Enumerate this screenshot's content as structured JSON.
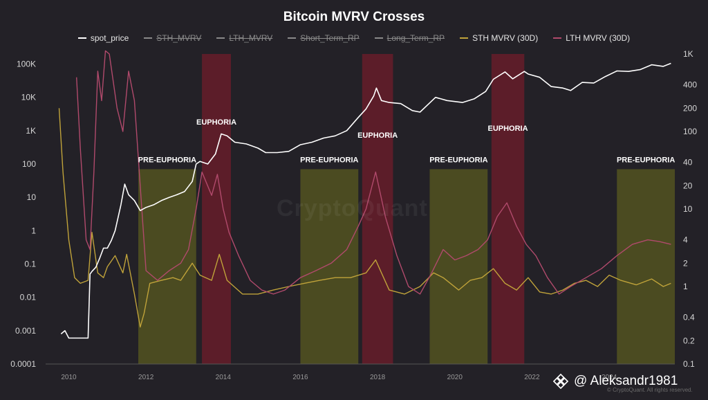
{
  "chart_data": {
    "type": "line",
    "title": "Bitcoin MVRV Crosses",
    "legend": {
      "placement": "top-center",
      "entries": [
        {
          "name": "spot_price",
          "color": "#ffffff",
          "visible": true
        },
        {
          "name": "STH_MVRV",
          "color": "#8a8a8a",
          "visible": false
        },
        {
          "name": "LTH_MVRV",
          "color": "#8a8a8a",
          "visible": false
        },
        {
          "name": "Short_Term_RP",
          "color": "#8a8a8a",
          "visible": false
        },
        {
          "name": "Long_Term_RP",
          "color": "#8a8a8a",
          "visible": false
        },
        {
          "name": "STH MVRV (30D)",
          "color": "#c0a33a",
          "visible": true
        },
        {
          "name": "LTH MVRV (30D)",
          "color": "#b14a6c",
          "visible": true
        }
      ]
    },
    "x_axis": {
      "range": [
        2009.4,
        2025.7
      ],
      "ticks": [
        "2010",
        "2012",
        "2014",
        "2016",
        "2018",
        "2020",
        "2022",
        "2024"
      ]
    },
    "y_left": {
      "scale": "log",
      "range": [
        0.0001,
        200000
      ],
      "ticks": [
        "100K",
        "10K",
        "1K",
        "100",
        "10",
        "1",
        "0.1",
        "0.01",
        "0.001",
        "0.0001"
      ]
    },
    "y_right": {
      "scale": "log",
      "range": [
        0.1,
        1000
      ],
      "ticks": [
        "1K",
        "400",
        "200",
        "100",
        "40",
        "20",
        "10",
        "4",
        "2",
        "1",
        "0.4",
        "0.2",
        "0.1"
      ]
    },
    "grid": false,
    "zones": [
      {
        "label": "PRE-EUPHORIA",
        "type": "pre",
        "from": 2011.8,
        "to": 2013.3
      },
      {
        "label": "EUPHORIA",
        "type": "euphoria",
        "from": 2013.45,
        "to": 2014.2
      },
      {
        "label": "PRE-EUPHORIA",
        "type": "pre",
        "from": 2016.0,
        "to": 2017.5
      },
      {
        "label": "EUPHORIA",
        "type": "euphoria",
        "from": 2017.6,
        "to": 2018.4
      },
      {
        "label": "PRE-EUPHORIA",
        "type": "pre",
        "from": 2019.35,
        "to": 2020.85
      },
      {
        "label": "EUPHORIA",
        "type": "euphoria",
        "from": 2020.95,
        "to": 2021.8
      },
      {
        "label": "PRE-EUPHORIA",
        "type": "pre",
        "from": 2024.2,
        "to": 2025.7
      }
    ],
    "series": [
      {
        "name": "spot_price",
        "axis": "left",
        "color": "#ffffff",
        "x": [
          2009.8,
          2009.9,
          2010.0,
          2010.2,
          2010.5,
          2010.55,
          2010.6,
          2010.7,
          2010.8,
          2010.9,
          2011.0,
          2011.1,
          2011.2,
          2011.35,
          2011.45,
          2011.55,
          2011.7,
          2011.85,
          2012.0,
          2012.2,
          2012.4,
          2012.6,
          2012.8,
          2013.0,
          2013.2,
          2013.3,
          2013.4,
          2013.6,
          2013.8,
          2013.95,
          2014.1,
          2014.3,
          2014.6,
          2014.9,
          2015.1,
          2015.4,
          2015.7,
          2016.0,
          2016.3,
          2016.6,
          2016.9,
          2017.2,
          2017.5,
          2017.7,
          2017.9,
          2017.97,
          2018.1,
          2018.3,
          2018.6,
          2018.9,
          2019.1,
          2019.5,
          2019.8,
          2020.2,
          2020.5,
          2020.8,
          2021.0,
          2021.3,
          2021.5,
          2021.8,
          2021.9,
          2022.2,
          2022.5,
          2022.8,
          2023.0,
          2023.3,
          2023.6,
          2023.9,
          2024.2,
          2024.5,
          2024.8,
          2025.1,
          2025.4,
          2025.6
        ],
        "y": [
          0.0008,
          0.001,
          0.0006,
          0.0006,
          0.0006,
          0.05,
          0.06,
          0.08,
          0.15,
          0.3,
          0.3,
          0.5,
          1,
          6,
          25,
          12,
          8,
          4,
          5,
          6,
          8,
          10,
          12,
          15,
          30,
          100,
          120,
          100,
          200,
          800,
          700,
          450,
          400,
          300,
          220,
          220,
          240,
          380,
          450,
          600,
          700,
          1000,
          2500,
          4500,
          11000,
          19000,
          8000,
          7000,
          6500,
          4000,
          3600,
          10000,
          8000,
          7000,
          9000,
          15000,
          35000,
          58000,
          36000,
          60000,
          50000,
          40000,
          21000,
          19000,
          16000,
          28000,
          27000,
          42000,
          62000,
          60000,
          68000,
          95000,
          85000,
          105000
        ]
      },
      {
        "name": "STH MVRV (30D)",
        "axis": "right",
        "color": "#c0a33a",
        "x": [
          2009.75,
          2009.85,
          2010.0,
          2010.15,
          2010.3,
          2010.5,
          2010.6,
          2010.75,
          2010.9,
          2011.0,
          2011.2,
          2011.4,
          2011.5,
          2011.7,
          2011.85,
          2011.95,
          2012.1,
          2012.4,
          2012.7,
          2012.9,
          2013.2,
          2013.4,
          2013.7,
          2013.9,
          2014.1,
          2014.5,
          2014.9,
          2015.3,
          2015.7,
          2016.1,
          2016.5,
          2016.9,
          2017.3,
          2017.7,
          2017.95,
          2018.3,
          2018.7,
          2019.1,
          2019.45,
          2019.7,
          2020.1,
          2020.4,
          2020.7,
          2021.0,
          2021.3,
          2021.6,
          2021.9,
          2022.2,
          2022.5,
          2022.8,
          2023.1,
          2023.4,
          2023.7,
          2024.0,
          2024.3,
          2024.7,
          2025.1,
          2025.4,
          2025.6
        ],
        "y": [
          200,
          30,
          4,
          1.3,
          1.1,
          1.2,
          5,
          1.5,
          1.3,
          1.8,
          2.5,
          1.5,
          2.6,
          0.8,
          0.3,
          0.45,
          1.1,
          1.2,
          1.3,
          1.2,
          2.0,
          1.4,
          1.2,
          2.6,
          1.2,
          0.8,
          0.8,
          0.9,
          1.0,
          1.1,
          1.2,
          1.3,
          1.3,
          1.5,
          2.2,
          0.9,
          0.8,
          1.0,
          1.5,
          1.3,
          0.9,
          1.2,
          1.3,
          1.7,
          1.1,
          0.9,
          1.3,
          0.85,
          0.8,
          0.9,
          1.1,
          1.2,
          1.0,
          1.4,
          1.2,
          1.05,
          1.25,
          1.0,
          1.1
        ]
      },
      {
        "name": "LTH MVRV (30D)",
        "axis": "right",
        "color": "#b14a6c",
        "x": [
          2010.2,
          2010.3,
          2010.45,
          2010.55,
          2010.65,
          2010.75,
          2010.85,
          2010.95,
          2011.05,
          2011.25,
          2011.4,
          2011.55,
          2011.7,
          2011.85,
          2012.0,
          2012.3,
          2012.6,
          2012.9,
          2013.1,
          2013.3,
          2013.45,
          2013.7,
          2013.85,
          2014.0,
          2014.15,
          2014.4,
          2014.7,
          2015.0,
          2015.3,
          2015.6,
          2016.0,
          2016.4,
          2016.8,
          2017.2,
          2017.5,
          2017.7,
          2017.95,
          2018.2,
          2018.5,
          2018.8,
          2019.1,
          2019.4,
          2019.7,
          2020.0,
          2020.3,
          2020.6,
          2020.85,
          2021.1,
          2021.35,
          2021.6,
          2021.85,
          2022.1,
          2022.4,
          2022.7,
          2023.0,
          2023.4,
          2023.8,
          2024.2,
          2024.6,
          2025.0,
          2025.3,
          2025.6
        ],
        "y": [
          500,
          60,
          4,
          3,
          30,
          600,
          250,
          1100,
          1000,
          200,
          100,
          600,
          250,
          20,
          1.6,
          1.2,
          1.6,
          2.0,
          3.0,
          10,
          30,
          15,
          28,
          10,
          5,
          2.5,
          1.2,
          0.9,
          0.8,
          0.9,
          1.3,
          1.6,
          2.0,
          3.0,
          6.0,
          10,
          30,
          8,
          2.5,
          1.0,
          0.8,
          1.5,
          3.0,
          2.2,
          2.5,
          3.0,
          4.0,
          8.0,
          12.0,
          6.0,
          3.5,
          2.5,
          1.3,
          0.8,
          1.0,
          1.3,
          1.7,
          2.5,
          3.5,
          4.0,
          3.8,
          3.5
        ]
      }
    ]
  },
  "watermark": "CryptoQuant",
  "credit": "© CryptoQuant. All rights reserved.",
  "handle": "@ Aleksandr1981",
  "colors": {
    "background": "#232127",
    "pre_euphoria_zone": "#5a5a20",
    "euphoria_zone": "#6a1d2b",
    "axis_text": "#d6d6d6"
  },
  "icons": {
    "handle": "binance-diamond-icon"
  }
}
